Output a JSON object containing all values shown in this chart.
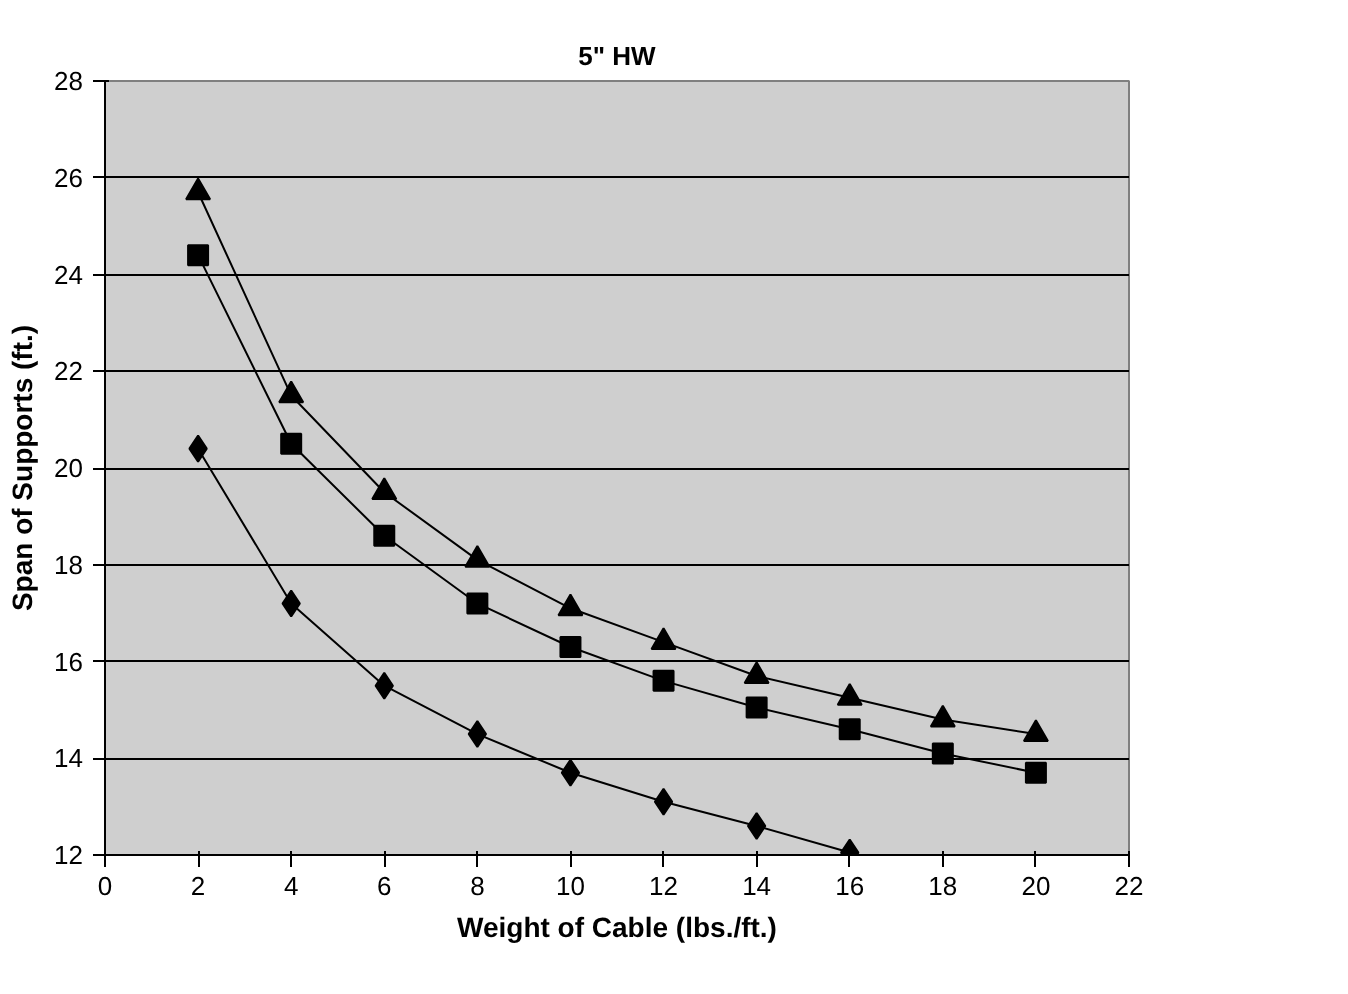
{
  "chart_data": {
    "type": "line",
    "title": "5\" HW",
    "xlabel": "Weight of Cable (lbs./ft.)",
    "ylabel": "Span of Supports (ft.)",
    "x": [
      2,
      4,
      6,
      8,
      10,
      12,
      14,
      16,
      18,
      20
    ],
    "series": [
      {
        "color": "#000000",
        "marker": "diamond",
        "values": [
          20.4,
          17.2,
          15.5,
          14.5,
          13.7,
          13.1,
          12.6,
          12.05,
          null,
          null
        ]
      },
      {
        "color": "#000000",
        "marker": "square",
        "values": [
          24.4,
          20.5,
          18.6,
          17.2,
          16.3,
          15.6,
          15.05,
          14.6,
          14.1,
          13.7
        ]
      },
      {
        "color": "#000000",
        "marker": "triangle",
        "values": [
          25.7,
          21.5,
          19.5,
          18.1,
          17.1,
          16.4,
          15.7,
          15.25,
          14.8,
          14.5
        ]
      }
    ],
    "xlim": [
      0,
      22
    ],
    "xticks": [
      0,
      2,
      4,
      6,
      8,
      10,
      12,
      14,
      16,
      18,
      20,
      22
    ],
    "ylim": [
      12,
      28
    ],
    "yticks": [
      12,
      14,
      16,
      18,
      20,
      22,
      24,
      26,
      28
    ],
    "grid": "y",
    "line_style": "solid"
  }
}
